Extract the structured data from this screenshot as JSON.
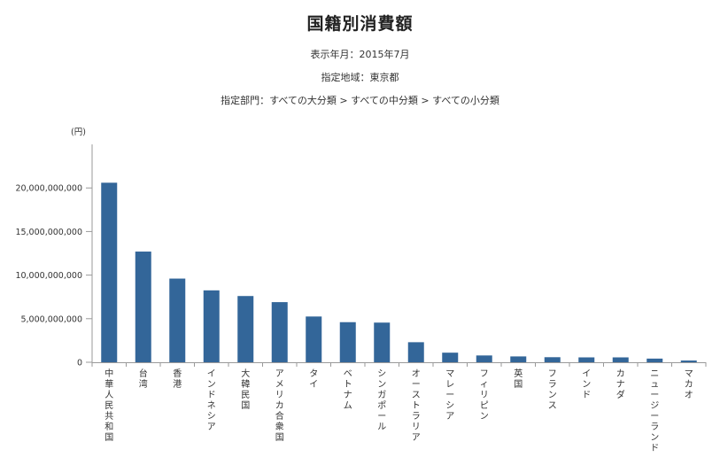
{
  "header": {
    "title": "国籍別消費額",
    "period_label": "表示年月：",
    "period_value": "2015年7月",
    "region_label": "指定地域：",
    "region_value": "東京都",
    "category_label": "指定部門：",
    "category_value": "すべての大分類 > すべての中分類 > すべての小分類"
  },
  "chart_data": {
    "type": "bar",
    "ylabel": "(円)",
    "ylim": [
      0,
      25000000000
    ],
    "yticks": [
      0,
      5000000000,
      10000000000,
      15000000000,
      20000000000
    ],
    "ytick_labels": [
      "0",
      "5,000,000,000",
      "10,000,000,000",
      "15,000,000,000",
      "20,000,000,000"
    ],
    "grid": false,
    "bar_color": "#336699",
    "categories": [
      "中華人民共和国",
      "台湾",
      "香港",
      "インドネシア",
      "大韓民国",
      "アメリカ合衆国",
      "タイ",
      "ベトナム",
      "シンガポール",
      "オーストラリア",
      "マレーシア",
      "フィリピン",
      "英国",
      "フランス",
      "インド",
      "カナダ",
      "ニュージーランド",
      "マカオ"
    ],
    "values": [
      20600000000,
      12700000000,
      9600000000,
      8250000000,
      7600000000,
      6900000000,
      5250000000,
      4600000000,
      4550000000,
      2300000000,
      1100000000,
      780000000,
      670000000,
      580000000,
      560000000,
      560000000,
      420000000,
      200000000
    ]
  }
}
